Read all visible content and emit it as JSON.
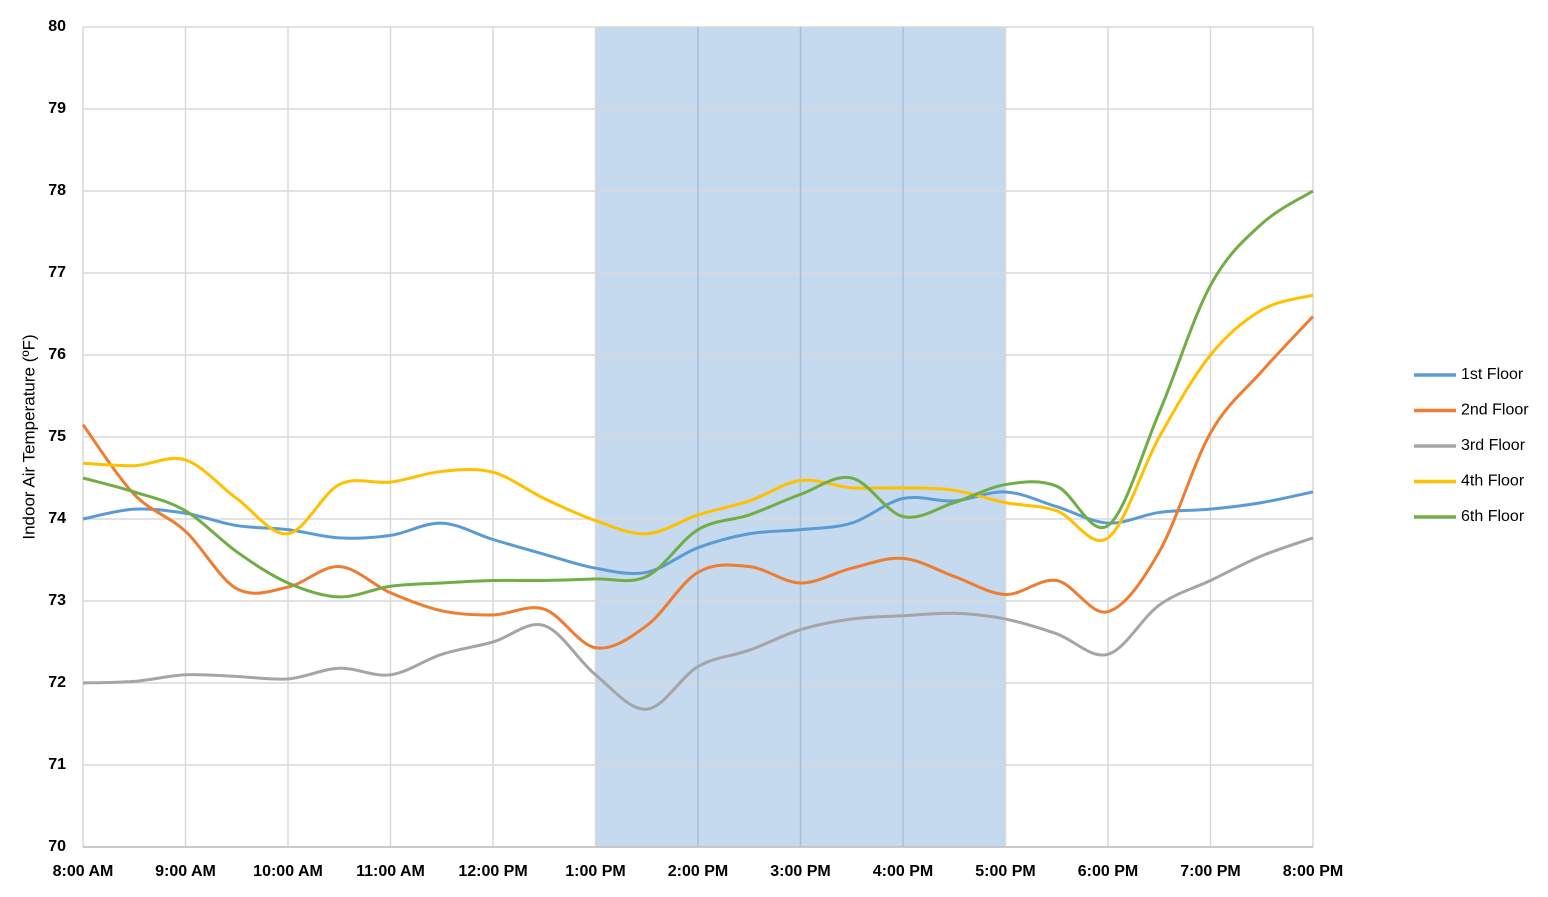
{
  "chart_data": {
    "type": "line",
    "y_label": "Indoor Air Temperature (ºF)",
    "categories": [
      "8:00 AM",
      null,
      "9:00 AM",
      null,
      "10:00 AM",
      null,
      "11:00 AM",
      null,
      "12:00 PM",
      null,
      "1:00 PM",
      null,
      "2:00 PM",
      null,
      "3:00 PM",
      null,
      "4:00 PM",
      null,
      "5:00 PM",
      null,
      "6:00 PM",
      null,
      "7:00 PM",
      null,
      "8:00 PM"
    ],
    "series": [
      {
        "name": "1st Floor",
        "color": "#5b9bd5",
        "values": [
          74.0,
          74.12,
          74.07,
          73.92,
          73.87,
          73.77,
          73.8,
          73.95,
          73.75,
          73.57,
          73.4,
          73.35,
          73.65,
          73.82,
          73.87,
          73.95,
          74.25,
          74.22,
          74.33,
          74.15,
          73.95,
          74.08,
          74.12,
          74.2,
          74.33
        ]
      },
      {
        "name": "2nd Floor",
        "color": "#ed7d31",
        "values": [
          75.15,
          74.3,
          73.85,
          73.15,
          73.17,
          73.42,
          73.1,
          72.88,
          72.83,
          72.9,
          72.43,
          72.7,
          73.35,
          73.42,
          73.22,
          73.4,
          73.52,
          73.3,
          73.08,
          73.25,
          72.87,
          73.6,
          75.05,
          75.8,
          76.47
        ]
      },
      {
        "name": "3rd Floor",
        "color": "#a5a5a5",
        "values": [
          72.0,
          72.02,
          72.1,
          72.08,
          72.05,
          72.18,
          72.1,
          72.35,
          72.5,
          72.7,
          72.1,
          71.68,
          72.2,
          72.4,
          72.65,
          72.78,
          72.82,
          72.85,
          72.78,
          72.6,
          72.35,
          72.95,
          73.25,
          73.55,
          73.77
        ]
      },
      {
        "name": "4th Floor",
        "color": "#ffc000",
        "values": [
          74.68,
          74.65,
          74.72,
          74.25,
          73.82,
          74.42,
          74.45,
          74.58,
          74.57,
          74.25,
          73.98,
          73.82,
          74.05,
          74.22,
          74.47,
          74.38,
          74.38,
          74.35,
          74.2,
          74.1,
          73.77,
          75.0,
          76.0,
          76.55,
          76.73
        ]
      },
      {
        "name": "6th Floor",
        "color": "#70ad47",
        "values": [
          74.5,
          74.33,
          74.1,
          73.6,
          73.22,
          73.05,
          73.18,
          73.22,
          73.25,
          73.25,
          73.27,
          73.3,
          73.87,
          74.05,
          74.3,
          74.5,
          74.03,
          74.2,
          74.42,
          74.4,
          73.92,
          75.3,
          76.85,
          77.6,
          78.0
        ]
      }
    ],
    "ylim": [
      70,
      80
    ],
    "yticks": [
      70,
      71,
      72,
      73,
      74,
      75,
      76,
      77,
      78,
      79,
      80
    ],
    "grid": true,
    "legend": "right",
    "shaded_range": [
      10,
      18
    ],
    "shaded_color": "#c5d9ef"
  }
}
